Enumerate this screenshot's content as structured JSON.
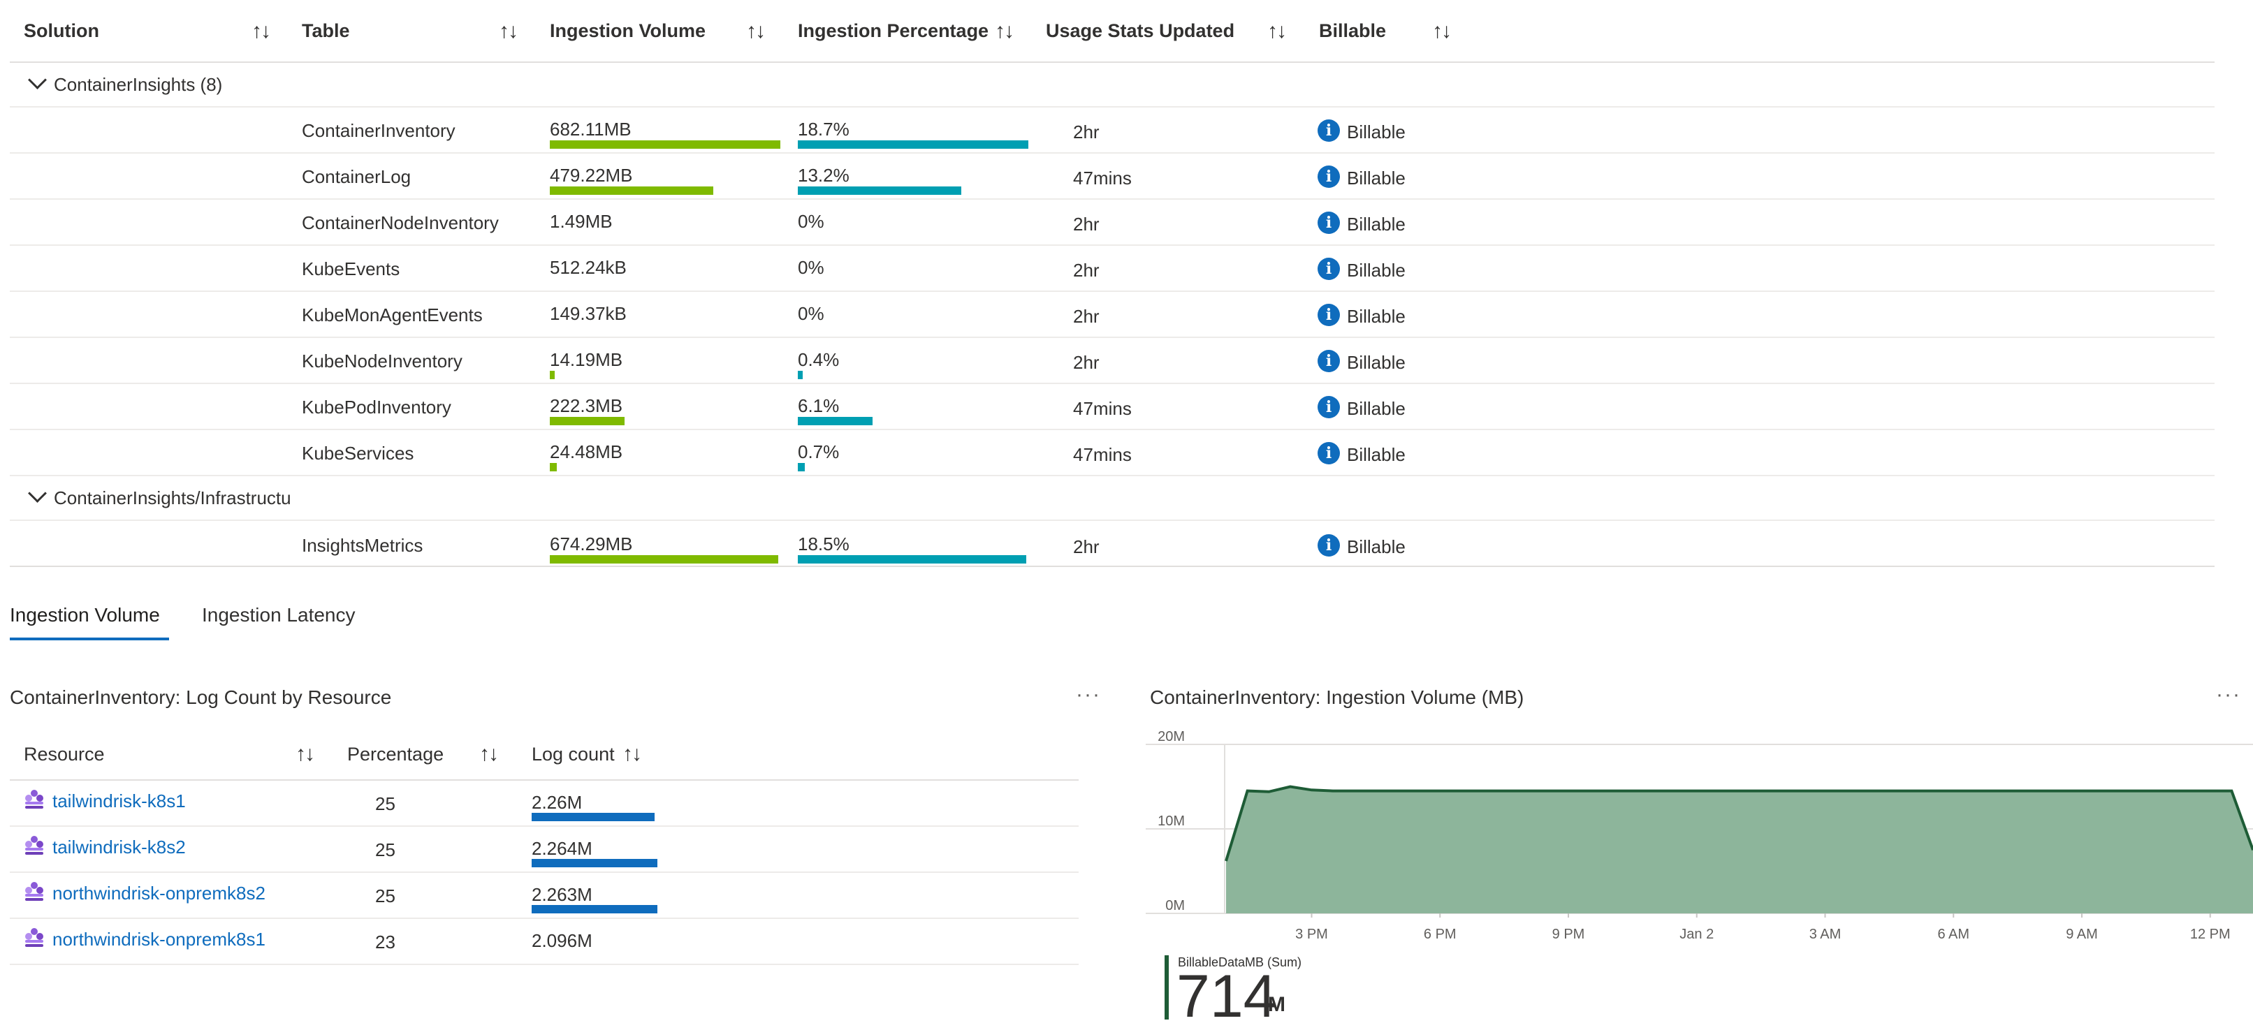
{
  "main_table": {
    "headers": {
      "solution": "Solution",
      "table": "Table",
      "ingestion_volume": "Ingestion Volume",
      "ingestion_percentage": "Ingestion Percentage",
      "usage_stats_updated": "Usage Stats Updated",
      "billable": "Billable"
    },
    "groups": [
      {
        "label": "ContainerInsights (8)",
        "rows": [
          {
            "table": "ContainerInventory",
            "volume": "682.11MB",
            "volume_fraction": 0.97,
            "percentage": "18.7%",
            "percentage_fraction": 0.97,
            "updated": "2hr",
            "billable": "Billable"
          },
          {
            "table": "ContainerLog",
            "volume": "479.22MB",
            "volume_fraction": 0.7,
            "percentage": "13.2%",
            "percentage_fraction": 0.7,
            "updated": "47mins",
            "billable": "Billable"
          },
          {
            "table": "ContainerNodeInventory",
            "volume": "1.49MB",
            "volume_fraction": 0,
            "percentage": "0%",
            "percentage_fraction": 0,
            "updated": "2hr",
            "billable": "Billable"
          },
          {
            "table": "KubeEvents",
            "volume": "512.24kB",
            "volume_fraction": 0,
            "percentage": "0%",
            "percentage_fraction": 0,
            "updated": "2hr",
            "billable": "Billable"
          },
          {
            "table": "KubeMonAgentEvents",
            "volume": "149.37kB",
            "volume_fraction": 0,
            "percentage": "0%",
            "percentage_fraction": 0,
            "updated": "2hr",
            "billable": "Billable"
          },
          {
            "table": "KubeNodeInventory",
            "volume": "14.19MB",
            "volume_fraction": 0.02,
            "percentage": "0.4%",
            "percentage_fraction": 0.02,
            "updated": "2hr",
            "billable": "Billable"
          },
          {
            "table": "KubePodInventory",
            "volume": "222.3MB",
            "volume_fraction": 0.32,
            "percentage": "6.1%",
            "percentage_fraction": 0.32,
            "updated": "47mins",
            "billable": "Billable"
          },
          {
            "table": "KubeServices",
            "volume": "24.48MB",
            "volume_fraction": 0.03,
            "percentage": "0.7%",
            "percentage_fraction": 0.03,
            "updated": "47mins",
            "billable": "Billable"
          }
        ]
      },
      {
        "label": "ContainerInsights/Infrastructu",
        "rows": [
          {
            "table": "InsightsMetrics",
            "volume": "674.29MB",
            "volume_fraction": 0.96,
            "percentage": "18.5%",
            "percentage_fraction": 0.96,
            "updated": "2hr",
            "billable": "Billable"
          }
        ]
      }
    ]
  },
  "tabs": [
    {
      "label": "Ingestion Volume",
      "active": true
    },
    {
      "label": "Ingestion Latency",
      "active": false
    }
  ],
  "log_count_panel": {
    "title": "ContainerInventory: Log Count by Resource",
    "more": "···",
    "headers": {
      "resource": "Resource",
      "percentage": "Percentage",
      "log_count": "Log count"
    },
    "rows": [
      {
        "resource": "tailwindrisk-k8s1",
        "percentage": "25",
        "log_count": "2.26M",
        "bar_fraction": 0.99
      },
      {
        "resource": "tailwindrisk-k8s2",
        "percentage": "25",
        "log_count": "2.264M",
        "bar_fraction": 1.0
      },
      {
        "resource": "northwindrisk-onpremk8s2",
        "percentage": "25",
        "log_count": "2.263M",
        "bar_fraction": 1.0
      },
      {
        "resource": "northwindrisk-onpremk8s1",
        "percentage": "23",
        "log_count": "2.096M",
        "bar_fraction": 0
      }
    ]
  },
  "volume_chart_panel": {
    "title": "ContainerInventory: Ingestion Volume (MB)",
    "more": "···",
    "legend_name": "BillableDataMB (Sum)",
    "legend_value": "714",
    "legend_unit": "M",
    "series_color": "#8db59b",
    "line_color": "#1e5c36"
  },
  "chart_data": {
    "type": "area",
    "title": "ContainerInventory: Ingestion Volume (MB)",
    "xlabel": "",
    "ylabel": "",
    "y_ticks": [
      "0M",
      "10M",
      "20M"
    ],
    "ylim": [
      0,
      20
    ],
    "x_ticks": [
      "3 PM",
      "6 PM",
      "9 PM",
      "Jan 2",
      "3 AM",
      "6 AM",
      "9 AM",
      "12 PM"
    ],
    "x": [
      0.0,
      0.5,
      1.0,
      1.5,
      2.0,
      2.5,
      3.0,
      4.0,
      5.0,
      6.0,
      7.0,
      8.0,
      9.0,
      10.0,
      11.0,
      12.0,
      13.0,
      14.0,
      15.0,
      16.0,
      17.0,
      18.0,
      19.0,
      20.0,
      21.0,
      22.0,
      22.5,
      23.0,
      23.5,
      24.0
    ],
    "series": [
      {
        "name": "BillableDataMB (Sum)",
        "values": [
          6.2,
          14.5,
          14.4,
          15.0,
          14.6,
          14.5,
          14.5,
          14.5,
          14.5,
          14.5,
          14.5,
          14.5,
          14.5,
          14.5,
          14.5,
          14.5,
          14.5,
          14.5,
          14.5,
          14.5,
          14.5,
          14.5,
          14.5,
          14.5,
          14.5,
          14.5,
          14.5,
          14.5,
          14.5,
          7.5
        ]
      }
    ],
    "grid": true,
    "legend": "bottom-left"
  }
}
